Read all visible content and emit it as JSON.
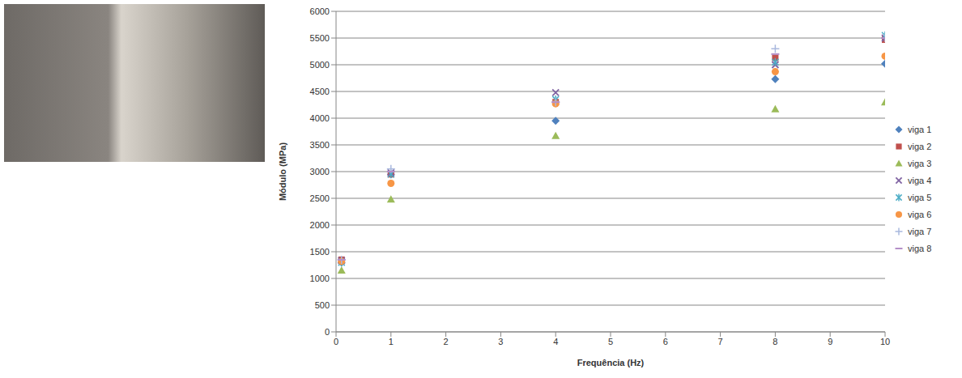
{
  "chart_data": {
    "type": "scatter",
    "x_label": "Frequência (Hz)",
    "y_label": "Módulo (MPa)",
    "x": [
      0.1,
      1,
      4,
      8,
      10
    ],
    "xlim": [
      0,
      10
    ],
    "xticks": [
      0,
      1,
      2,
      3,
      4,
      5,
      6,
      7,
      8,
      9,
      10
    ],
    "ylim": [
      0,
      6000
    ],
    "yticks": [
      0,
      500,
      1000,
      1500,
      2000,
      2500,
      3000,
      3500,
      4000,
      4500,
      5000,
      5500,
      6000
    ],
    "grid": true,
    "legend": "right",
    "series": [
      {
        "name": "viga 1",
        "color": "#4f81bd",
        "marker": "diamond",
        "values": [
          1300,
          2950,
          3950,
          4730,
          5020
        ]
      },
      {
        "name": "viga 2",
        "color": "#c0504d",
        "marker": "square",
        "values": [
          1350,
          2950,
          4300,
          5130,
          5470
        ]
      },
      {
        "name": "viga 3",
        "color": "#9bbb59",
        "marker": "triangle",
        "values": [
          1150,
          2480,
          3670,
          4170,
          4300
        ]
      },
      {
        "name": "viga 4",
        "color": "#8064a2",
        "marker": "x",
        "values": [
          1330,
          2980,
          4480,
          5000,
          5500
        ]
      },
      {
        "name": "viga 5",
        "color": "#4bacc6",
        "marker": "asterisk",
        "values": [
          1300,
          2950,
          4350,
          5050,
          5550
        ]
      },
      {
        "name": "viga 6",
        "color": "#f79646",
        "marker": "circle",
        "values": [
          1320,
          2780,
          4270,
          4870,
          5160
        ]
      },
      {
        "name": "viga 7",
        "color": "#a9b8de",
        "marker": "plus",
        "values": [
          1350,
          3050,
          4300,
          5300,
          5500
        ]
      },
      {
        "name": "viga 8",
        "color": "#b48fc8",
        "marker": "dash",
        "values": [
          1350,
          3000,
          4300,
          5200,
          5500
        ]
      }
    ]
  }
}
